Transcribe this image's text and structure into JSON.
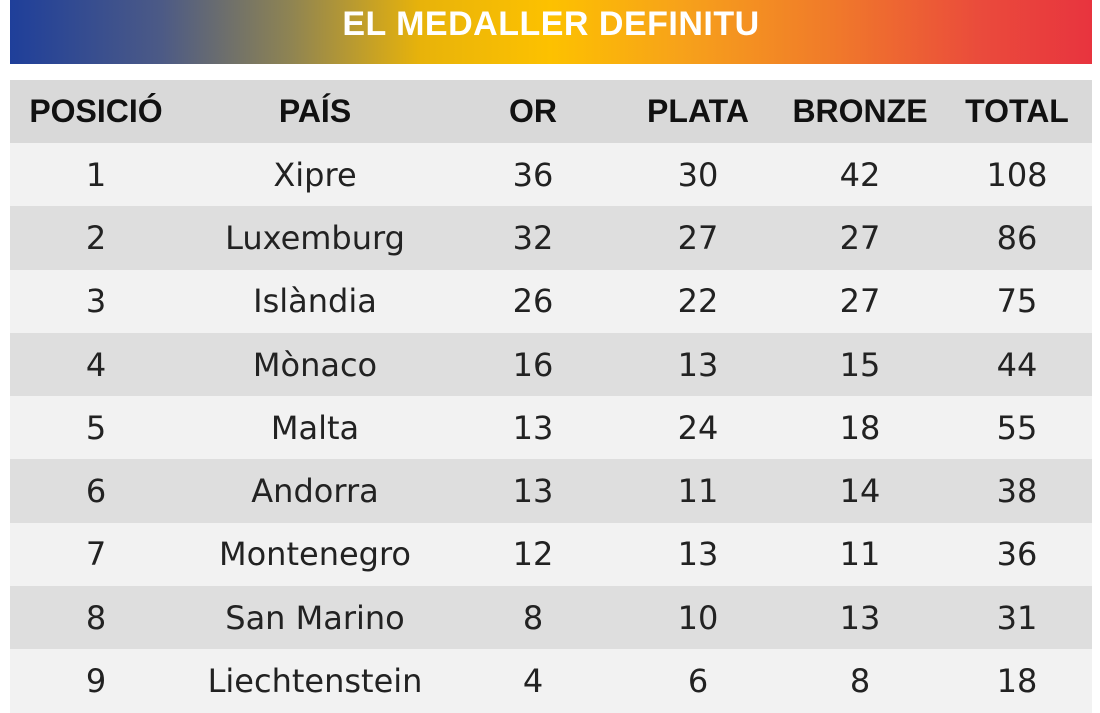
{
  "banner": {
    "title": "EL MEDALLER DEFINITU"
  },
  "table": {
    "headers": [
      "POSICIÓ",
      "PAÍS",
      "OR",
      "PLATA",
      "BRONZE",
      "TOTAL"
    ],
    "rows": [
      [
        "1",
        "Xipre",
        "36",
        "30",
        "42",
        "108"
      ],
      [
        "2",
        "Luxemburg",
        "32",
        "27",
        "27",
        "86"
      ],
      [
        "3",
        "Islàndia",
        "26",
        "22",
        "27",
        "75"
      ],
      [
        "4",
        "Mònaco",
        "16",
        "13",
        "15",
        "44"
      ],
      [
        "5",
        "Malta",
        "13",
        "24",
        "18",
        "55"
      ],
      [
        "6",
        "Andorra",
        "13",
        "11",
        "14",
        "38"
      ],
      [
        "7",
        "Montenegro",
        "12",
        "13",
        "11",
        "36"
      ],
      [
        "8",
        "San Marino",
        "8",
        "10",
        "13",
        "31"
      ],
      [
        "9",
        "Liechtenstein",
        "4",
        "6",
        "8",
        "18"
      ]
    ]
  },
  "colors": {
    "banner_gradient": [
      "#1f3f9a",
      "#fdc100",
      "#e8343e"
    ],
    "header_bg": "#d9d9d9",
    "row_light": "#f2f2f2",
    "row_dark": "#dedede"
  }
}
